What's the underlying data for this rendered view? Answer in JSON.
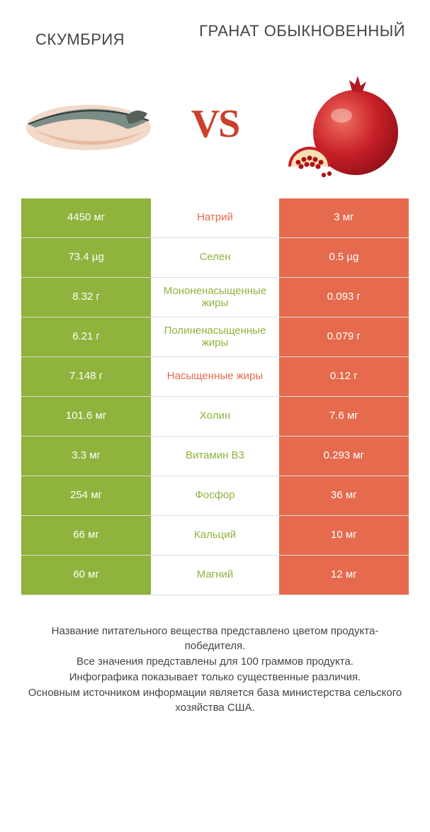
{
  "header": {
    "left_title": "СКУМБРИЯ",
    "right_title": "ГРАНАТ ОБЫКНОВЕННЫЙ"
  },
  "vs_label": "VS",
  "colors": {
    "left_cell": "#8fb33c",
    "right_cell": "#e56a4e",
    "mid_green": "#8fb33c",
    "mid_red": "#e56a4e",
    "row_border": "#dcdcdc",
    "vs_text": "#c9412a",
    "footer_text": "#444444"
  },
  "rows": [
    {
      "left": "4450 мг",
      "label": "Натрий",
      "right": "3 мг",
      "winner": "red"
    },
    {
      "left": "73.4 µg",
      "label": "Селен",
      "right": "0.5 µg",
      "winner": "green"
    },
    {
      "left": "8.32 г",
      "label": "Мононенасыщенные жиры",
      "right": "0.093 г",
      "winner": "green"
    },
    {
      "left": "6.21 г",
      "label": "Полиненасыщенные жиры",
      "right": "0.079 г",
      "winner": "green"
    },
    {
      "left": "7.148 г",
      "label": "Насыщенные жиры",
      "right": "0.12 г",
      "winner": "red"
    },
    {
      "left": "101.6 мг",
      "label": "Холин",
      "right": "7.6 мг",
      "winner": "green"
    },
    {
      "left": "3.3 мг",
      "label": "Витамин B3",
      "right": "0.293 мг",
      "winner": "green"
    },
    {
      "left": "254 мг",
      "label": "Фосфор",
      "right": "36 мг",
      "winner": "green"
    },
    {
      "left": "66 мг",
      "label": "Кальций",
      "right": "10 мг",
      "winner": "green"
    },
    {
      "left": "60 мг",
      "label": "Магний",
      "right": "12 мг",
      "winner": "green"
    }
  ],
  "footer_lines": [
    "Название питательного вещества представлено цветом продукта-победителя.",
    "Все значения представлены для 100 граммов продукта.",
    "Инфографика показывает только существенные различия.",
    "Основным источником информации является база министерства сельского хозяйства США."
  ]
}
